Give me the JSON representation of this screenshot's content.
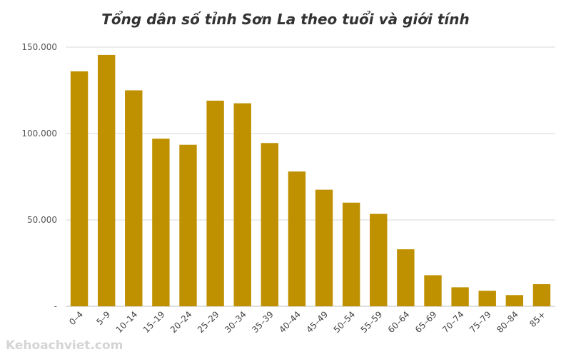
{
  "watermark": "Kehoachviet.com",
  "colors": {
    "bar": "#BF9000",
    "grid": "#d9d9d9"
  },
  "chart_data": {
    "type": "bar",
    "title": "Tổng dân số tỉnh Sơn La theo tuổi và giới tính",
    "xlabel": "",
    "ylabel": "",
    "ylim": [
      0,
      150000
    ],
    "yticks": [
      {
        "value": 0,
        "label": "-"
      },
      {
        "value": 50000,
        "label": "50.000"
      },
      {
        "value": 100000,
        "label": "100.000"
      },
      {
        "value": 150000,
        "label": "150.000"
      }
    ],
    "grid": true,
    "legend": "none",
    "categories": [
      "0–4",
      "5–9",
      "10–14",
      "15–19",
      "20–24",
      "25–29",
      "30–34",
      "35–39",
      "40–44",
      "45–49",
      "50–54",
      "55–59",
      "60–64",
      "65–69",
      "70–74",
      "75–79",
      "80–84",
      "85+"
    ],
    "values": [
      136000,
      145500,
      125000,
      97000,
      93500,
      119000,
      117500,
      94500,
      78000,
      67500,
      60000,
      53500,
      33000,
      18000,
      11000,
      9000,
      6500,
      12800
    ]
  }
}
